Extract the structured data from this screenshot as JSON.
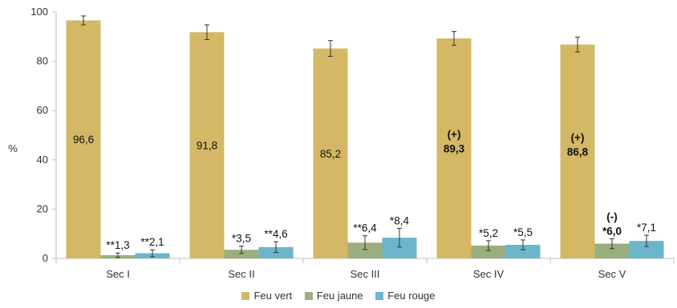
{
  "chart_data": {
    "type": "bar",
    "ylabel": "%",
    "ylim": [
      0,
      100
    ],
    "yticks": [
      0,
      20,
      40,
      60,
      80,
      100
    ],
    "grid": false,
    "legend_position": "bottom",
    "categories": [
      "Sec I",
      "Sec II",
      "Sec III",
      "Sec IV",
      "Sec V"
    ],
    "series": [
      {
        "name": "Feu vert",
        "color": "#D4B866",
        "values": [
          96.6,
          91.8,
          85.2,
          89.3,
          86.8
        ],
        "errors": [
          1.8,
          3.0,
          3.2,
          2.8,
          3.0
        ],
        "labels": [
          {
            "prefix": "",
            "text": "96,6",
            "bold": false
          },
          {
            "prefix": "",
            "text": "91,8",
            "bold": false
          },
          {
            "prefix": "",
            "text": "85,2",
            "bold": false
          },
          {
            "prefix": "(+)",
            "text": "89,3",
            "bold": true
          },
          {
            "prefix": "(+)",
            "text": "86,8",
            "bold": true
          }
        ]
      },
      {
        "name": "Feu jaune",
        "color": "#9BAF7E",
        "values": [
          1.3,
          3.5,
          6.4,
          5.2,
          6.0
        ],
        "errors": [
          0.9,
          1.5,
          2.8,
          2.0,
          2.0
        ],
        "labels": [
          {
            "prefix": "",
            "text": "**1,3",
            "bold": false
          },
          {
            "prefix": "",
            "text": "*3,5",
            "bold": false
          },
          {
            "prefix": "",
            "text": "**6,4",
            "bold": false
          },
          {
            "prefix": "",
            "text": "*5,2",
            "bold": false
          },
          {
            "prefix": "(-)",
            "text": "*6,0",
            "bold": true
          }
        ]
      },
      {
        "name": "Feu rouge",
        "color": "#6BB6CB",
        "values": [
          2.1,
          4.6,
          8.4,
          5.5,
          7.1
        ],
        "errors": [
          1.4,
          2.2,
          3.8,
          2.0,
          2.3
        ],
        "labels": [
          {
            "prefix": "",
            "text": "**2,1",
            "bold": false
          },
          {
            "prefix": "",
            "text": "**4,6",
            "bold": false
          },
          {
            "prefix": "",
            "text": "*8,4",
            "bold": false
          },
          {
            "prefix": "",
            "text": "*5,5",
            "bold": false
          },
          {
            "prefix": "",
            "text": "*7,1",
            "bold": false
          }
        ]
      }
    ]
  }
}
